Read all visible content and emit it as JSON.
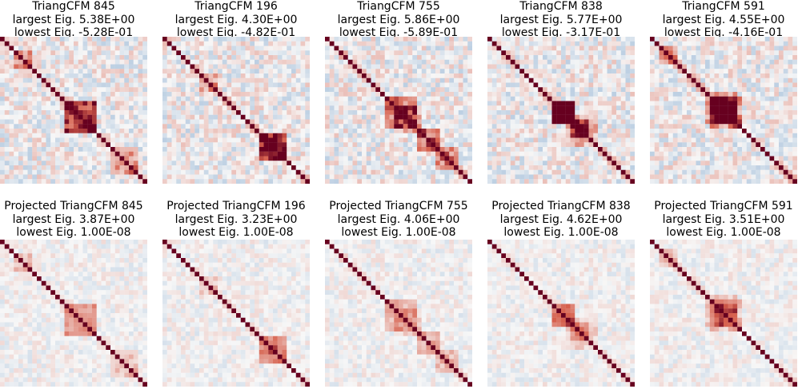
{
  "figure": {
    "colormap": "RdBu_r",
    "color_low": "#2166ac",
    "color_mid": "#f7f7f7",
    "color_high": "#67001f"
  },
  "chart_data": [
    {
      "type": "heatmap",
      "title": "TriangCFM 845",
      "largest_eig": "largest Eig. 5.38E+00",
      "lowest_eig": "lowest Eig. -5.28E-01",
      "size": 32,
      "seed": 845,
      "projected": false,
      "clim": [
        -1,
        1
      ]
    },
    {
      "type": "heatmap",
      "title": "TriangCFM 196",
      "largest_eig": "largest Eig. 4.30E+00",
      "lowest_eig": "lowest Eig. -4.82E-01",
      "size": 32,
      "seed": 196,
      "projected": false,
      "clim": [
        -1,
        1
      ]
    },
    {
      "type": "heatmap",
      "title": "TriangCFM 755",
      "largest_eig": "largest Eig. 5.86E+00",
      "lowest_eig": "lowest Eig. -5.89E-01",
      "size": 32,
      "seed": 755,
      "projected": false,
      "clim": [
        -1,
        1
      ]
    },
    {
      "type": "heatmap",
      "title": "TriangCFM 838",
      "largest_eig": "largest Eig. 5.77E+00",
      "lowest_eig": "lowest Eig. -3.17E-01",
      "size": 32,
      "seed": 838,
      "projected": false,
      "clim": [
        -1,
        1
      ]
    },
    {
      "type": "heatmap",
      "title": "TriangCFM 591",
      "largest_eig": "largest Eig. 4.55E+00",
      "lowest_eig": "lowest Eig. -4.16E-01",
      "size": 32,
      "seed": 591,
      "projected": false,
      "clim": [
        -1,
        1
      ]
    },
    {
      "type": "heatmap",
      "title": "Projected TriangCFM 845",
      "largest_eig": "largest Eig. 3.87E+00",
      "lowest_eig": "lowest Eig. 1.00E-08",
      "size": 32,
      "seed": 845,
      "projected": true,
      "clim": [
        -1,
        1
      ]
    },
    {
      "type": "heatmap",
      "title": "Projected TriangCFM 196",
      "largest_eig": "largest Eig. 3.23E+00",
      "lowest_eig": "lowest Eig. 1.00E-08",
      "size": 32,
      "seed": 196,
      "projected": true,
      "clim": [
        -1,
        1
      ]
    },
    {
      "type": "heatmap",
      "title": "Projected TriangCFM 755",
      "largest_eig": "largest Eig. 4.06E+00",
      "lowest_eig": "lowest Eig. 1.00E-08",
      "size": 32,
      "seed": 755,
      "projected": true,
      "clim": [
        -1,
        1
      ]
    },
    {
      "type": "heatmap",
      "title": "Projected TriangCFM 838",
      "largest_eig": "largest Eig. 4.62E+00",
      "lowest_eig": "lowest Eig. 1.00E-08",
      "size": 32,
      "seed": 838,
      "projected": true,
      "clim": [
        -1,
        1
      ]
    },
    {
      "type": "heatmap",
      "title": "Projected TriangCFM 591",
      "largest_eig": "largest Eig. 3.51E+00",
      "lowest_eig": "lowest Eig. 1.00E-08",
      "size": 32,
      "seed": 591,
      "projected": true,
      "clim": [
        -1,
        1
      ]
    }
  ]
}
